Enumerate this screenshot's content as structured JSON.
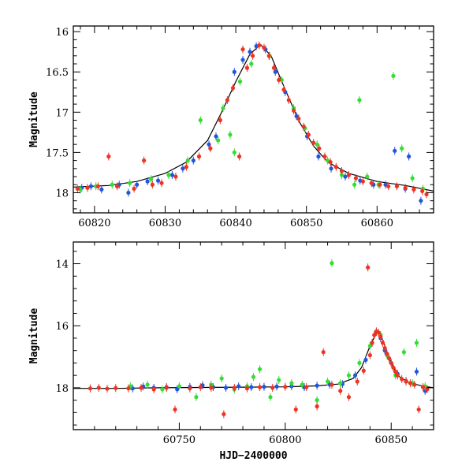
{
  "chart_data": [
    {
      "type": "scatter",
      "title": "",
      "xlabel": "",
      "ylabel": "Magnitude",
      "xlim": [
        60817,
        60868
      ],
      "ylim": [
        18.25,
        15.93
      ],
      "y_inverted": true,
      "xticks": [
        60820,
        60830,
        60840,
        60850,
        60860
      ],
      "yticks": [
        16,
        16.5,
        17,
        17.5,
        18
      ],
      "ytick_labels": [
        "16",
        "16.5",
        "17",
        "17.5",
        "18"
      ],
      "grid": false,
      "legend": "none",
      "model_curve": {
        "color": "#000000",
        "points": [
          [
            60817,
            17.93
          ],
          [
            60822,
            17.91
          ],
          [
            60826,
            17.86
          ],
          [
            60830,
            17.76
          ],
          [
            60833,
            17.62
          ],
          [
            60836,
            17.35
          ],
          [
            60838,
            17.0
          ],
          [
            60840,
            16.62
          ],
          [
            60842,
            16.28
          ],
          [
            60843.5,
            16.16
          ],
          [
            60845,
            16.3
          ],
          [
            60847,
            16.72
          ],
          [
            60849,
            17.12
          ],
          [
            60851,
            17.42
          ],
          [
            60853,
            17.62
          ],
          [
            60856,
            17.76
          ],
          [
            60860,
            17.86
          ],
          [
            60864,
            17.91
          ],
          [
            60868,
            17.98
          ]
        ]
      },
      "series": [
        {
          "color": "#2255dd",
          "points": [
            [
              60818.2,
              17.94
            ],
            [
              60819.5,
              17.92
            ],
            [
              60821.0,
              17.96
            ],
            [
              60823.5,
              17.9
            ],
            [
              60824.8,
              18.0
            ],
            [
              60826.0,
              17.9
            ],
            [
              60827.5,
              17.86
            ],
            [
              60829.0,
              17.85
            ],
            [
              60831.0,
              17.78
            ],
            [
              60832.5,
              17.7
            ],
            [
              60834.0,
              17.6
            ],
            [
              60836.2,
              17.4
            ],
            [
              60837.2,
              17.3
            ],
            [
              60839.8,
              16.5
            ],
            [
              60841.0,
              16.35
            ],
            [
              60842.0,
              16.25
            ],
            [
              60842.9,
              16.18
            ],
            [
              60844.2,
              16.22
            ],
            [
              60845.6,
              16.5
            ],
            [
              60847.0,
              16.75
            ],
            [
              60848.6,
              17.05
            ],
            [
              60850.1,
              17.3
            ],
            [
              60851.7,
              17.55
            ],
            [
              60853.5,
              17.7
            ],
            [
              60855.5,
              17.8
            ],
            [
              60857.6,
              17.85
            ],
            [
              60859.5,
              17.9
            ],
            [
              60861.2,
              17.9
            ],
            [
              60862.5,
              17.48
            ],
            [
              60864.0,
              17.95
            ],
            [
              60864.5,
              17.55
            ],
            [
              60866.2,
              18.1
            ]
          ]
        },
        {
          "color": "#33dd33",
          "points": [
            [
              60818.0,
              17.96
            ],
            [
              60820.2,
              17.92
            ],
            [
              60822.5,
              17.9
            ],
            [
              60825.0,
              17.88
            ],
            [
              60828.0,
              17.83
            ],
            [
              60830.5,
              17.78
            ],
            [
              60833.2,
              17.6
            ],
            [
              60835.0,
              17.1
            ],
            [
              60837.5,
              17.35
            ],
            [
              60838.2,
              16.95
            ],
            [
              60839.2,
              17.28
            ],
            [
              60839.8,
              17.5
            ],
            [
              60840.6,
              16.62
            ],
            [
              60842.2,
              16.4
            ],
            [
              60844.8,
              16.3
            ],
            [
              60846.5,
              16.6
            ],
            [
              60848.2,
              16.95
            ],
            [
              60849.8,
              17.2
            ],
            [
              60851.5,
              17.4
            ],
            [
              60853.0,
              17.6
            ],
            [
              60855.0,
              17.78
            ],
            [
              60856.8,
              17.9
            ],
            [
              60857.5,
              16.85
            ],
            [
              60858.6,
              17.8
            ],
            [
              60860.2,
              17.9
            ],
            [
              60862.3,
              16.55
            ],
            [
              60863.5,
              17.45
            ],
            [
              60865.0,
              17.82
            ],
            [
              60866.5,
              17.95
            ]
          ]
        },
        {
          "color": "#ee3322",
          "points": [
            [
              60817.6,
              17.95
            ],
            [
              60819.0,
              17.94
            ],
            [
              60820.5,
              17.92
            ],
            [
              60822.0,
              17.55
            ],
            [
              60823.2,
              17.92
            ],
            [
              60825.6,
              17.95
            ],
            [
              60827.0,
              17.6
            ],
            [
              60828.2,
              17.9
            ],
            [
              60829.5,
              17.88
            ],
            [
              60831.5,
              17.8
            ],
            [
              60833.0,
              17.68
            ],
            [
              60834.8,
              17.55
            ],
            [
              60836.4,
              17.45
            ],
            [
              60837.8,
              17.1
            ],
            [
              60838.8,
              16.85
            ],
            [
              60839.6,
              16.7
            ],
            [
              60840.5,
              17.55
            ],
            [
              60841.0,
              16.22
            ],
            [
              60841.6,
              16.45
            ],
            [
              60842.4,
              16.3
            ],
            [
              60843.3,
              16.17
            ],
            [
              60844.0,
              16.2
            ],
            [
              60844.7,
              16.3
            ],
            [
              60845.4,
              16.45
            ],
            [
              60846.1,
              16.6
            ],
            [
              60846.8,
              16.72
            ],
            [
              60847.5,
              16.85
            ],
            [
              60848.2,
              16.98
            ],
            [
              60848.9,
              17.08
            ],
            [
              60849.6,
              17.18
            ],
            [
              60850.3,
              17.28
            ],
            [
              60851.0,
              17.38
            ],
            [
              60851.8,
              17.45
            ],
            [
              60852.6,
              17.55
            ],
            [
              60853.4,
              17.62
            ],
            [
              60854.2,
              17.68
            ],
            [
              60855.0,
              17.73
            ],
            [
              60856.0,
              17.78
            ],
            [
              60857.0,
              17.82
            ],
            [
              60858.0,
              17.86
            ],
            [
              60859.2,
              17.88
            ],
            [
              60860.4,
              17.9
            ],
            [
              60861.6,
              17.92
            ],
            [
              60862.8,
              17.92
            ],
            [
              60864.0,
              17.94
            ],
            [
              60865.2,
              17.96
            ],
            [
              60866.4,
              17.98
            ],
            [
              60867.0,
              18.02
            ]
          ]
        }
      ]
    },
    {
      "type": "scatter",
      "title": "",
      "xlabel": "HJD−2400000",
      "ylabel": "Magnitude",
      "xlim": [
        60700,
        60870
      ],
      "ylim": [
        19.35,
        13.3
      ],
      "y_inverted": true,
      "xticks": [
        60750,
        60800,
        60850
      ],
      "yticks": [
        14,
        16,
        18
      ],
      "ytick_labels": [
        "14",
        "16",
        "18"
      ],
      "grid": false,
      "legend": "none",
      "model_curve": {
        "color": "#000000",
        "points": [
          [
            60700,
            18.02
          ],
          [
            60720,
            18.02
          ],
          [
            60740,
            18.0
          ],
          [
            60760,
            17.99
          ],
          [
            60780,
            17.98
          ],
          [
            60800,
            17.97
          ],
          [
            60815,
            17.94
          ],
          [
            60825,
            17.88
          ],
          [
            60832,
            17.7
          ],
          [
            60836,
            17.35
          ],
          [
            60840,
            16.65
          ],
          [
            60843.5,
            16.16
          ],
          [
            60846,
            16.45
          ],
          [
            60849,
            17.05
          ],
          [
            60853,
            17.6
          ],
          [
            60858,
            17.82
          ],
          [
            60865,
            17.95
          ],
          [
            60870,
            18.0
          ]
        ]
      },
      "series": [
        {
          "color": "#2255dd",
          "points": [
            [
              60728,
              18.02
            ],
            [
              60733,
              17.96
            ],
            [
              60738,
              18.0
            ],
            [
              60744,
              17.98
            ],
            [
              60749,
              18.05
            ],
            [
              60755,
              17.97
            ],
            [
              60761,
              17.92
            ],
            [
              60766,
              17.98
            ],
            [
              60772,
              18.0
            ],
            [
              60778,
              17.95
            ],
            [
              60784,
              17.98
            ],
            [
              60790,
              17.97
            ],
            [
              60796,
              17.96
            ],
            [
              60803,
              17.95
            ],
            [
              60809,
              17.98
            ],
            [
              60815,
              17.93
            ],
            [
              60821,
              17.9
            ],
            [
              60827,
              17.88
            ],
            [
              60833,
              17.6
            ],
            [
              60838,
              17.1
            ],
            [
              60841,
              16.55
            ],
            [
              60843,
              16.2
            ],
            [
              60845,
              16.4
            ],
            [
              60847,
              16.8
            ],
            [
              60850,
              17.2
            ],
            [
              60853,
              17.55
            ],
            [
              60857,
              17.78
            ],
            [
              60862,
              17.48
            ],
            [
              60866,
              18.1
            ]
          ]
        },
        {
          "color": "#33dd33",
          "points": [
            [
              60727,
              17.95
            ],
            [
              60735,
              17.9
            ],
            [
              60742,
              18.05
            ],
            [
              60750,
              17.95
            ],
            [
              60758,
              18.3
            ],
            [
              60765,
              17.9
            ],
            [
              60770,
              17.7
            ],
            [
              60776,
              18.05
            ],
            [
              60782,
              17.95
            ],
            [
              60785,
              17.65
            ],
            [
              60788,
              17.4
            ],
            [
              60793,
              18.3
            ],
            [
              60797,
              17.75
            ],
            [
              60803,
              17.85
            ],
            [
              60808,
              17.9
            ],
            [
              60815,
              18.4
            ],
            [
              60820,
              17.8
            ],
            [
              60822,
              13.98
            ],
            [
              60826,
              17.85
            ],
            [
              60830,
              17.6
            ],
            [
              60835,
              17.2
            ],
            [
              60840,
              16.65
            ],
            [
              60845,
              16.3
            ],
            [
              60848,
              16.95
            ],
            [
              60852,
              17.6
            ],
            [
              60856,
              16.85
            ],
            [
              60860,
              17.85
            ],
            [
              60862,
              16.55
            ],
            [
              60866,
              17.95
            ]
          ]
        },
        {
          "color": "#ee3322",
          "points": [
            [
              60708,
              18.02
            ],
            [
              60712,
              18.0
            ],
            [
              60716,
              18.03
            ],
            [
              60720,
              18.01
            ],
            [
              60726,
              18.02
            ],
            [
              60732,
              18.0
            ],
            [
              60738,
              18.05
            ],
            [
              60744,
              18.0
            ],
            [
              60748,
              18.7
            ],
            [
              60755,
              18.02
            ],
            [
              60760,
              17.98
            ],
            [
              60765,
              18.0
            ],
            [
              60771,
              18.85
            ],
            [
              60776,
              18.0
            ],
            [
              60782,
              18.02
            ],
            [
              60788,
              17.98
            ],
            [
              60794,
              18.0
            ],
            [
              60800,
              17.97
            ],
            [
              60805,
              18.7
            ],
            [
              60810,
              17.98
            ],
            [
              60815,
              18.6
            ],
            [
              60818,
              16.85
            ],
            [
              60822,
              17.9
            ],
            [
              60826,
              18.1
            ],
            [
              60830,
              18.3
            ],
            [
              60834,
              17.8
            ],
            [
              60837,
              17.45
            ],
            [
              60839,
              14.12
            ],
            [
              60840,
              16.95
            ],
            [
              60841,
              16.55
            ],
            [
              60842,
              16.3
            ],
            [
              60843,
              16.18
            ],
            [
              60844,
              16.22
            ],
            [
              60845,
              16.35
            ],
            [
              60846,
              16.55
            ],
            [
              60847,
              16.72
            ],
            [
              60848,
              16.9
            ],
            [
              60849,
              17.05
            ],
            [
              60850,
              17.2
            ],
            [
              60851,
              17.35
            ],
            [
              60852,
              17.48
            ],
            [
              60853,
              17.6
            ],
            [
              60855,
              17.72
            ],
            [
              60857,
              17.8
            ],
            [
              60859,
              17.85
            ],
            [
              60861,
              17.9
            ],
            [
              60863,
              18.7
            ],
            [
              60865,
              17.98
            ],
            [
              60867,
              18.05
            ]
          ]
        }
      ]
    }
  ]
}
